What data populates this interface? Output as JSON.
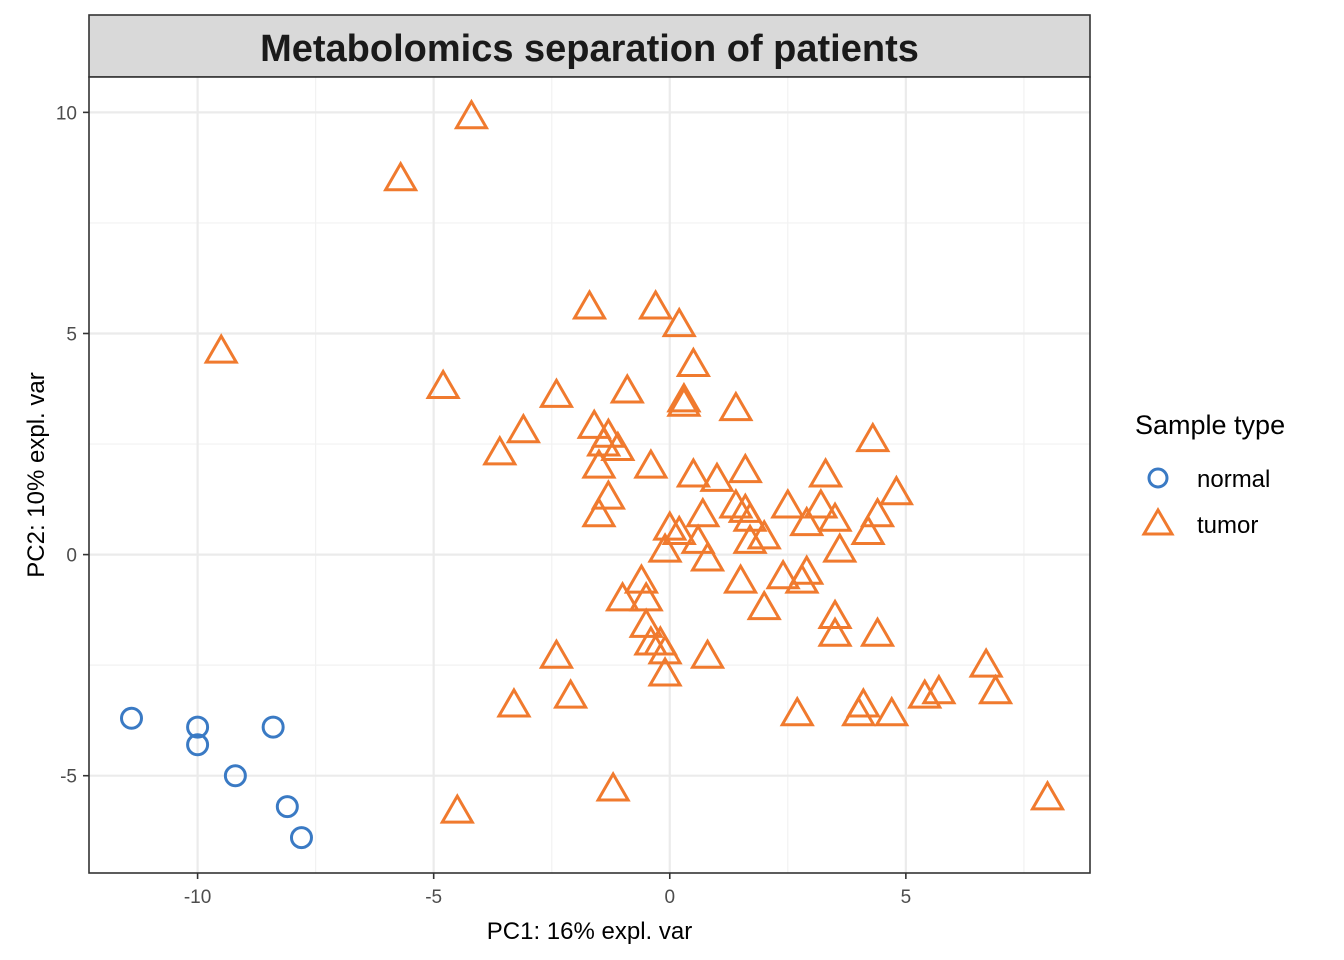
{
  "chart_data": {
    "type": "scatter",
    "title": "Metabolomics separation of patients",
    "xlabel": "PC1: 16% expl. var",
    "ylabel": "PC2: 10% expl. var",
    "xlim": [
      -12.3,
      8.9
    ],
    "ylim": [
      -7.2,
      10.8
    ],
    "x_ticks": [
      -10,
      -5,
      0,
      5
    ],
    "x_tick_labels": [
      "-10",
      "-5",
      "0",
      "5"
    ],
    "y_ticks": [
      -5,
      0,
      5,
      10
    ],
    "y_tick_labels": [
      "-5",
      "0",
      "5",
      "10"
    ],
    "grid": true,
    "legend": {
      "title": "Sample type",
      "position": "right",
      "entries": [
        {
          "label": "normal",
          "shape": "circle",
          "color": "#3a7ac4"
        },
        {
          "label": "tumor",
          "shape": "triangle",
          "color": "#f07a2e"
        }
      ]
    },
    "series": [
      {
        "name": "normal",
        "shape": "circle",
        "color": "#3a7ac4",
        "points": [
          [
            -11.4,
            -3.7
          ],
          [
            -10.0,
            -3.9
          ],
          [
            -10.0,
            -4.3
          ],
          [
            -8.4,
            -3.9
          ],
          [
            -9.2,
            -5.0
          ],
          [
            -8.1,
            -5.7
          ],
          [
            -7.8,
            -6.4
          ]
        ]
      },
      {
        "name": "tumor",
        "shape": "triangle",
        "color": "#f07a2e",
        "points": [
          [
            -4.2,
            9.9
          ],
          [
            -5.7,
            8.5
          ],
          [
            -9.5,
            4.6
          ],
          [
            -4.8,
            3.8
          ],
          [
            -1.7,
            5.6
          ],
          [
            -0.3,
            5.6
          ],
          [
            0.2,
            5.2
          ],
          [
            0.5,
            4.3
          ],
          [
            -0.9,
            3.7
          ],
          [
            0.3,
            3.5
          ],
          [
            0.3,
            3.4
          ],
          [
            -2.4,
            3.6
          ],
          [
            -3.1,
            2.8
          ],
          [
            -3.6,
            2.3
          ],
          [
            1.4,
            3.3
          ],
          [
            -1.6,
            2.9
          ],
          [
            -1.3,
            2.7
          ],
          [
            -1.4,
            2.5
          ],
          [
            -1.1,
            2.4
          ],
          [
            -1.5,
            2.0
          ],
          [
            -0.4,
            2.0
          ],
          [
            0.5,
            1.8
          ],
          [
            1.0,
            1.7
          ],
          [
            1.6,
            1.9
          ],
          [
            4.3,
            2.6
          ],
          [
            3.3,
            1.8
          ],
          [
            4.8,
            1.4
          ],
          [
            -1.3,
            1.3
          ],
          [
            1.4,
            1.1
          ],
          [
            1.6,
            1.0
          ],
          [
            2.5,
            1.1
          ],
          [
            3.2,
            1.1
          ],
          [
            -1.5,
            0.9
          ],
          [
            0.7,
            0.9
          ],
          [
            1.7,
            0.8
          ],
          [
            3.5,
            0.8
          ],
          [
            4.4,
            0.9
          ],
          [
            0.0,
            0.6
          ],
          [
            0.2,
            0.5
          ],
          [
            2.0,
            0.4
          ],
          [
            2.9,
            0.7
          ],
          [
            4.2,
            0.5
          ],
          [
            0.6,
            0.3
          ],
          [
            1.7,
            0.3
          ],
          [
            -0.1,
            0.1
          ],
          [
            3.6,
            0.1
          ],
          [
            0.8,
            -0.1
          ],
          [
            -0.6,
            -0.6
          ],
          [
            2.4,
            -0.5
          ],
          [
            2.9,
            -0.4
          ],
          [
            1.5,
            -0.6
          ],
          [
            2.8,
            -0.6
          ],
          [
            -1.0,
            -1.0
          ],
          [
            -0.5,
            -1.0
          ],
          [
            2.0,
            -1.2
          ],
          [
            3.5,
            -1.4
          ],
          [
            -0.5,
            -1.6
          ],
          [
            3.5,
            -1.8
          ],
          [
            4.4,
            -1.8
          ],
          [
            -0.4,
            -2.0
          ],
          [
            -0.2,
            -2.0
          ],
          [
            -0.1,
            -2.2
          ],
          [
            0.8,
            -2.3
          ],
          [
            -2.4,
            -2.3
          ],
          [
            6.7,
            -2.5
          ],
          [
            -0.1,
            -2.7
          ],
          [
            5.4,
            -3.2
          ],
          [
            5.7,
            -3.1
          ],
          [
            6.9,
            -3.1
          ],
          [
            4.1,
            -3.4
          ],
          [
            -2.1,
            -3.2
          ],
          [
            -3.3,
            -3.4
          ],
          [
            4.0,
            -3.6
          ],
          [
            4.7,
            -3.6
          ],
          [
            2.7,
            -3.6
          ],
          [
            -1.2,
            -5.3
          ],
          [
            -4.5,
            -5.8
          ],
          [
            8.0,
            -5.5
          ]
        ]
      }
    ]
  }
}
